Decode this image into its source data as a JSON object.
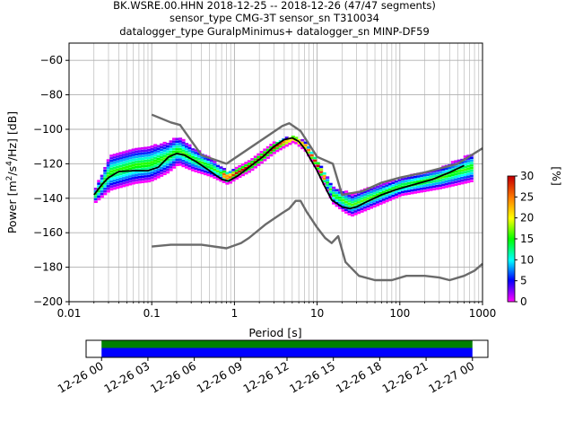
{
  "figure": {
    "title_lines": [
      "BK.WSRE.00.HHN   2018-12-25 -- 2018-12-26  (47/47 segments)",
      "sensor_type CMG-3T sensor_sn T310034",
      "datalogger_type GuralpMinimus+ datalogger_sn MINP-DF59"
    ]
  },
  "colors": {
    "noise_model": "#6b6b6b",
    "mode_line": "#000000",
    "grid": "#b0b0b0",
    "coverage_top": "#008000",
    "coverage_bottom": "#0000ff"
  },
  "chart_data": [
    {
      "type": "heatmap",
      "title": "",
      "xlabel": "Period [s]",
      "ylabel": "Power [m^2/s^4/Hz] [dB]",
      "xscale": "log",
      "xlim": [
        0.01,
        1000
      ],
      "ylim": [
        -200,
        -50
      ],
      "grid": true,
      "x_ticks": [
        0.01,
        0.1,
        1,
        10,
        100,
        1000
      ],
      "x_tick_labels": [
        "0.01",
        "0.1",
        "1",
        "10",
        "100",
        "1000"
      ],
      "y_ticks": [
        -200,
        -180,
        -160,
        -140,
        -120,
        -100,
        -80,
        -60
      ],
      "y_tick_labels": [
        "-200",
        "-180",
        "-160",
        "-140",
        "-120",
        "-100",
        "-80",
        "-60"
      ],
      "colorbar": {
        "label": "[%]",
        "range": [
          0,
          30
        ],
        "ticks": [
          0,
          5,
          10,
          15,
          20,
          25,
          30
        ],
        "tick_labels": [
          "0",
          "5",
          "10",
          "15",
          "20",
          "25",
          "30"
        ]
      },
      "series": [
        {
          "role": "noise_model_high",
          "points": [
            [
              0.1,
              -91.5
            ],
            [
              0.17,
              -96
            ],
            [
              0.22,
              -97.5
            ],
            [
              0.4,
              -115
            ],
            [
              0.8,
              -120
            ],
            [
              3.8,
              -98
            ],
            [
              4.6,
              -96.5
            ],
            [
              6.3,
              -101
            ],
            [
              10,
              -116
            ],
            [
              15.5,
              -120
            ],
            [
              20,
              -138
            ],
            [
              35,
              -136
            ],
            [
              60,
              -131
            ],
            [
              100,
              -128
            ],
            [
              200,
              -125
            ],
            [
              500,
              -120
            ],
            [
              1000,
              -111
            ]
          ]
        },
        {
          "role": "noise_model_low",
          "points": [
            [
              0.1,
              -168
            ],
            [
              0.17,
              -167
            ],
            [
              0.4,
              -167
            ],
            [
              0.8,
              -169
            ],
            [
              1.2,
              -166
            ],
            [
              1.5,
              -163
            ],
            [
              2.4,
              -155
            ],
            [
              3.8,
              -148.5
            ],
            [
              4.6,
              -146
            ],
            [
              5.5,
              -141.5
            ],
            [
              6.3,
              -141.5
            ],
            [
              7.5,
              -148
            ],
            [
              10,
              -157
            ],
            [
              12.5,
              -163
            ],
            [
              15,
              -166
            ],
            [
              18,
              -162
            ],
            [
              22,
              -177
            ],
            [
              32,
              -185
            ],
            [
              50,
              -187.5
            ],
            [
              80,
              -187.5
            ],
            [
              120,
              -185
            ],
            [
              200,
              -185
            ],
            [
              300,
              -186
            ],
            [
              400,
              -187.5
            ],
            [
              600,
              -185
            ],
            [
              800,
              -182
            ],
            [
              1000,
              -178
            ]
          ]
        },
        {
          "role": "mode",
          "points": [
            [
              0.02,
              -138
            ],
            [
              0.025,
              -132
            ],
            [
              0.03,
              -128
            ],
            [
              0.04,
              -124.5
            ],
            [
              0.06,
              -124
            ],
            [
              0.09,
              -124
            ],
            [
              0.12,
              -122
            ],
            [
              0.16,
              -116
            ],
            [
              0.2,
              -114
            ],
            [
              0.25,
              -115
            ],
            [
              0.35,
              -119
            ],
            [
              0.5,
              -124
            ],
            [
              0.7,
              -129
            ],
            [
              0.85,
              -130
            ],
            [
              1.1,
              -127
            ],
            [
              1.6,
              -121
            ],
            [
              2.2,
              -116
            ],
            [
              3,
              -110
            ],
            [
              4,
              -106
            ],
            [
              5,
              -105
            ],
            [
              6,
              -107
            ],
            [
              7,
              -111
            ],
            [
              8,
              -116
            ],
            [
              10,
              -124
            ],
            [
              12,
              -132
            ],
            [
              15,
              -141
            ],
            [
              20,
              -145
            ],
            [
              25,
              -146
            ],
            [
              30,
              -145
            ],
            [
              40,
              -142
            ],
            [
              60,
              -138
            ],
            [
              90,
              -135
            ],
            [
              150,
              -132
            ],
            [
              250,
              -129
            ],
            [
              400,
              -125
            ],
            [
              600,
              -121
            ]
          ]
        }
      ],
      "psd_cloud": {
        "description_points": [
          [
            0.02,
            -138
          ],
          [
            0.03,
            -125
          ],
          [
            0.06,
            -121
          ],
          [
            0.09,
            -120
          ],
          [
            0.15,
            -116
          ],
          [
            0.2,
            -112
          ],
          [
            0.3,
            -117
          ],
          [
            0.5,
            -122
          ],
          [
            0.8,
            -128
          ],
          [
            1.5,
            -121
          ],
          [
            3,
            -110
          ],
          [
            5,
            -105
          ],
          [
            7,
            -110
          ],
          [
            10,
            -122
          ],
          [
            15,
            -138
          ],
          [
            25,
            -144
          ],
          [
            40,
            -140
          ],
          [
            100,
            -133
          ],
          [
            300,
            -128
          ],
          [
            700,
            -122
          ]
        ],
        "spread_db": [
          [
            0.02,
            4
          ],
          [
            0.03,
            10
          ],
          [
            0.1,
            10
          ],
          [
            0.2,
            8
          ],
          [
            0.5,
            5
          ],
          [
            1,
            3
          ],
          [
            3,
            3
          ],
          [
            5,
            2
          ],
          [
            10,
            3
          ],
          [
            20,
            6
          ],
          [
            40,
            6
          ],
          [
            100,
            5
          ],
          [
            300,
            6
          ],
          [
            700,
            8
          ]
        ]
      },
      "time_axis": {
        "labels": [
          "12-26 00",
          "12-26 03",
          "12-26 06",
          "12-26 09",
          "12-26 12",
          "12-26 15",
          "12-26 18",
          "12-26 21",
          "12-27 00"
        ],
        "range_hours": [
          -1,
          25
        ],
        "coverage_hours": [
          0,
          24
        ]
      }
    }
  ]
}
